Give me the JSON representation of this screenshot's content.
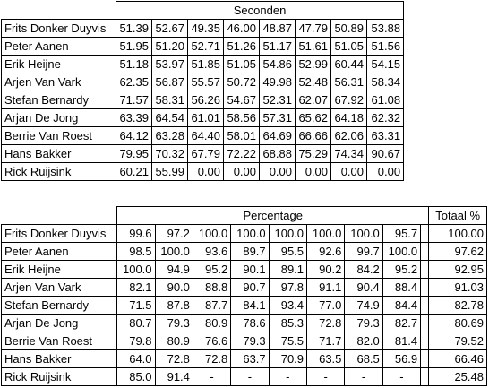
{
  "seconds": {
    "header": "Seconden",
    "rows": [
      {
        "name": "Frits Donker Duyvis",
        "values": [
          "51.39",
          "52.67",
          "49.35",
          "46.00",
          "48.87",
          "47.79",
          "50.89",
          "53.88"
        ]
      },
      {
        "name": "Peter Aanen",
        "values": [
          "51.95",
          "51.20",
          "52.71",
          "51.26",
          "51.17",
          "51.61",
          "51.05",
          "51.56"
        ]
      },
      {
        "name": "Erik Heijne",
        "values": [
          "51.18",
          "53.97",
          "51.85",
          "51.05",
          "54.86",
          "52.99",
          "60.44",
          "54.15"
        ]
      },
      {
        "name": "Arjen Van Vark",
        "values": [
          "62.35",
          "56.87",
          "55.57",
          "50.72",
          "49.98",
          "52.48",
          "56.31",
          "58.34"
        ]
      },
      {
        "name": "Stefan Bernardy",
        "values": [
          "71.57",
          "58.31",
          "56.26",
          "54.67",
          "52.31",
          "62.07",
          "67.92",
          "61.08"
        ]
      },
      {
        "name": "Arjan De Jong",
        "values": [
          "63.39",
          "64.54",
          "61.01",
          "58.56",
          "57.31",
          "65.62",
          "64.18",
          "62.32"
        ]
      },
      {
        "name": "Berrie Van Roest",
        "values": [
          "64.12",
          "63.28",
          "64.40",
          "58.01",
          "64.69",
          "66.66",
          "62.06",
          "63.31"
        ]
      },
      {
        "name": "Hans Bakker",
        "values": [
          "79.95",
          "70.32",
          "67.79",
          "72.22",
          "68.88",
          "75.29",
          "74.34",
          "90.67"
        ]
      },
      {
        "name": "Rick Ruijsink",
        "values": [
          "60.21",
          "55.99",
          "0.00",
          "0.00",
          "0.00",
          "0.00",
          "0.00",
          "0.00"
        ]
      }
    ]
  },
  "percentage": {
    "header": "Percentage",
    "total_header": "Totaal %",
    "rows": [
      {
        "name": "Frits Donker Duyvis",
        "values": [
          "99.6",
          "97.2",
          "100.0",
          "100.0",
          "100.0",
          "100.0",
          "100.0",
          "95.7"
        ],
        "total": "100.00"
      },
      {
        "name": "Peter Aanen",
        "values": [
          "98.5",
          "100.0",
          "93.6",
          "89.7",
          "95.5",
          "92.6",
          "99.7",
          "100.0"
        ],
        "total": "97.62"
      },
      {
        "name": "Erik Heijne",
        "values": [
          "100.0",
          "94.9",
          "95.2",
          "90.1",
          "89.1",
          "90.2",
          "84.2",
          "95.2"
        ],
        "total": "92.95"
      },
      {
        "name": "Arjen Van Vark",
        "values": [
          "82.1",
          "90.0",
          "88.8",
          "90.7",
          "97.8",
          "91.1",
          "90.4",
          "88.4"
        ],
        "total": "91.03"
      },
      {
        "name": "Stefan Bernardy",
        "values": [
          "71.5",
          "87.8",
          "87.7",
          "84.1",
          "93.4",
          "77.0",
          "74.9",
          "84.4"
        ],
        "total": "82.78"
      },
      {
        "name": "Arjan De Jong",
        "values": [
          "80.7",
          "79.3",
          "80.9",
          "78.6",
          "85.3",
          "72.8",
          "79.3",
          "82.7"
        ],
        "total": "80.69"
      },
      {
        "name": "Berrie Van Roest",
        "values": [
          "79.8",
          "80.9",
          "76.6",
          "79.3",
          "75.5",
          "71.7",
          "82.0",
          "81.4"
        ],
        "total": "79.52"
      },
      {
        "name": "Hans Bakker",
        "values": [
          "64.0",
          "72.8",
          "72.8",
          "63.7",
          "70.9",
          "63.5",
          "68.5",
          "56.9"
        ],
        "total": "66.46"
      },
      {
        "name": "Rick Ruijsink",
        "values": [
          "85.0",
          "91.4",
          "-",
          "-",
          "-",
          "-",
          "-",
          "-"
        ],
        "total": "25.48"
      }
    ]
  }
}
